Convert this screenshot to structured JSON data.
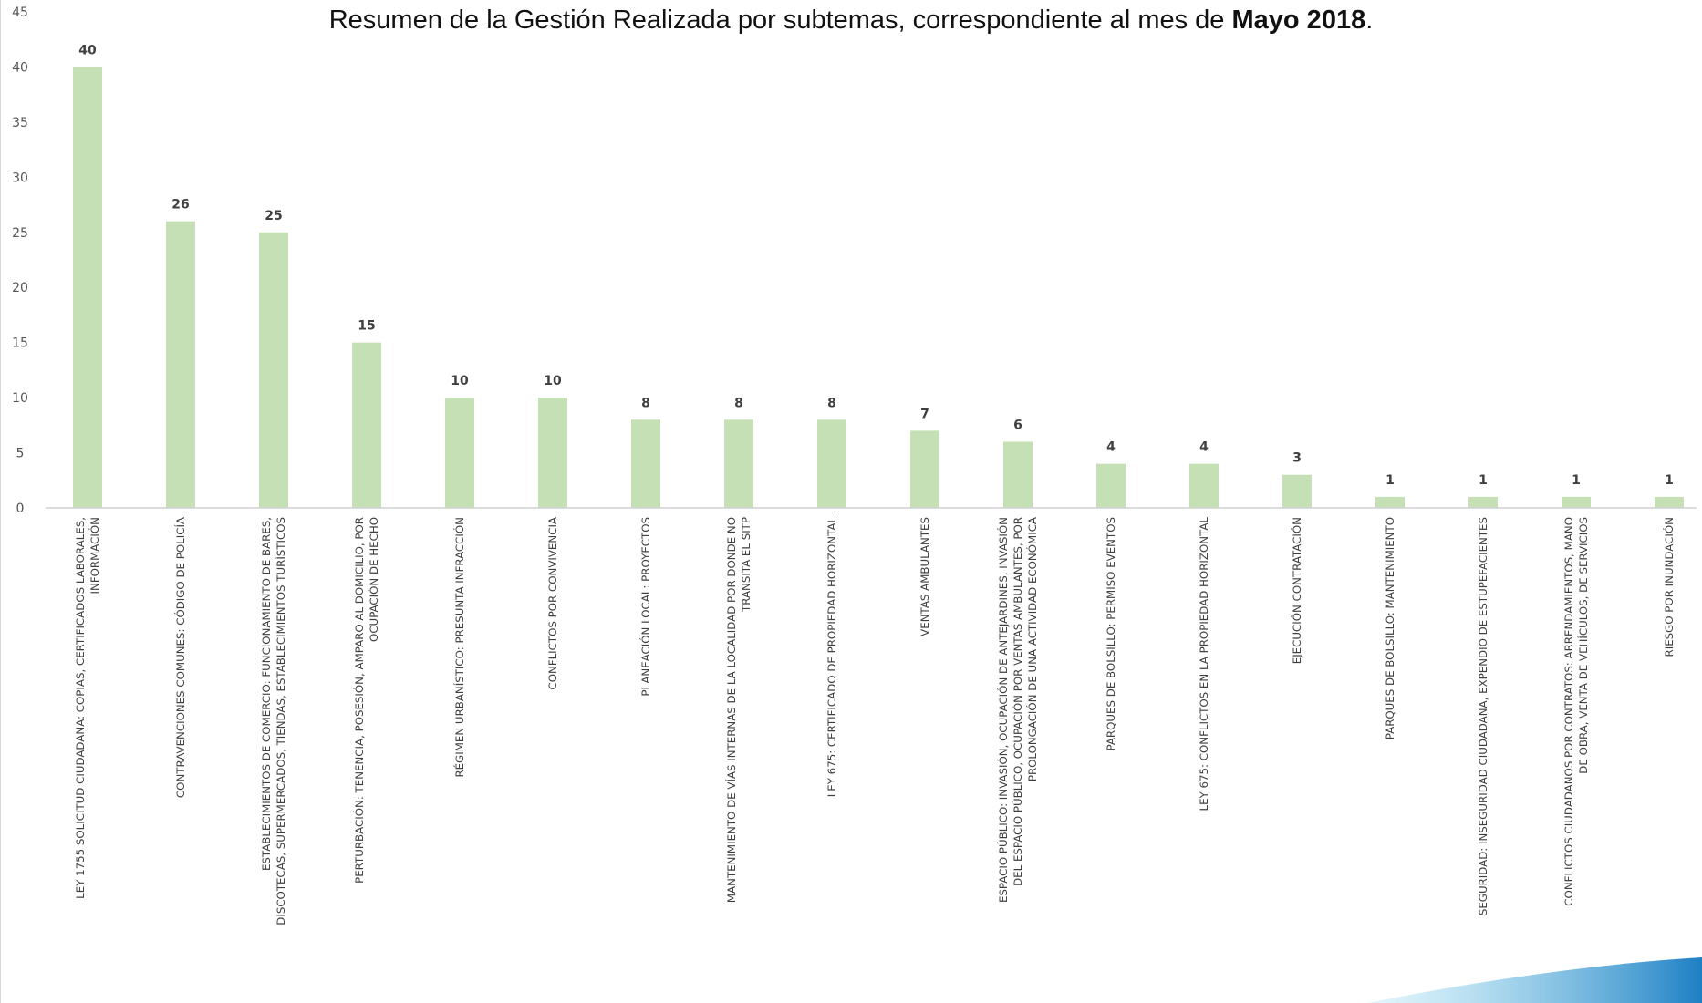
{
  "chart_data": {
    "type": "bar",
    "title": {
      "prefix": "Resumen de la Gestión Realizada por subtemas, correspondiente al mes de ",
      "bold": "Mayo 2018",
      "suffix": "."
    },
    "xlabel": "",
    "ylabel": "",
    "ylim": [
      0,
      45
    ],
    "yticks": [
      "0",
      "5",
      "10",
      "15",
      "20",
      "25",
      "30",
      "35",
      "40",
      "45"
    ],
    "grid": false,
    "bar_color": "#c5e0b4",
    "categories": [
      [
        "LEY 1755 SOLICITUD CIUDADANA: COPIAS, CERTIFICADOS LABORALES,",
        "INFORMACIÓN"
      ],
      [
        "CONTRAVENCIONES COMUNES: CÓDIGO DE POLICÍA"
      ],
      [
        "ESTABLECIMIENTOS DE COMERCIO: FUNCIONAMIENTO DE BARES,",
        "DISCOTECAS, SUPERMERCADOS, TIENDAS, ESTABLECIMIENTOS TURÍSTICOS"
      ],
      [
        "PERTURBACIÓN: TENENCIA, POSESIÓN, AMPARO AL DOMICILIO, POR",
        "OCUPACIÓN DE HECHO"
      ],
      [
        "RÉGIMEN URBANÍSTICO: PRESUNTA INFRACCIÓN"
      ],
      [
        "CONFLICTOS POR CONVIVENCIA"
      ],
      [
        "PLANEACIÓN LOCAL: PROYECTOS"
      ],
      [
        "MANTENIMIENTO DE VÍAS INTERNAS DE LA LOCALIDAD POR DONDE NO",
        "TRANSITA EL SITP"
      ],
      [
        "LEY 675: CERTIFICADO DE PROPIEDAD HORIZONTAL"
      ],
      [
        "VENTAS AMBULANTES"
      ],
      [
        "ESPACIO PÚBLICO: INVASIÓN, OCUPACIÓN DE ANTEJARDINES, INVASIÓN",
        "DEL ESPACIO PÚBLICO, OCUPACIÓN POR VENTAS AMBULANTES, POR",
        "PROLONGACIÓN DE UNA ACTIVIDAD ECONÓMICA"
      ],
      [
        "PARQUES DE BOLSILLO: PERMISO EVENTOS"
      ],
      [
        "LEY 675: CONFLICTOS EN LA PROPIEDAD HORIZONTAL"
      ],
      [
        "EJECUCIÓN CONTRATACIÓN"
      ],
      [
        "PARQUES DE BOLSILLO: MANTENIMIENTO"
      ],
      [
        "SEGURIDAD: INSEGURIDAD CIUDADANA, EXPENDIO DE ESTUPEFACIENTES"
      ],
      [
        "CONFLICTOS CIUDADANOS POR CONTRATOS: ARRENDAMIENTOS, MANO",
        "DE OBRA, VENTA DE VEHÍCULOS, DE SERVICIOS"
      ],
      [
        "RIESGO POR INUNDACIÓN"
      ]
    ],
    "values": [
      40,
      26,
      25,
      15,
      10,
      10,
      8,
      8,
      8,
      7,
      6,
      4,
      4,
      3,
      1,
      1,
      1,
      1
    ]
  }
}
